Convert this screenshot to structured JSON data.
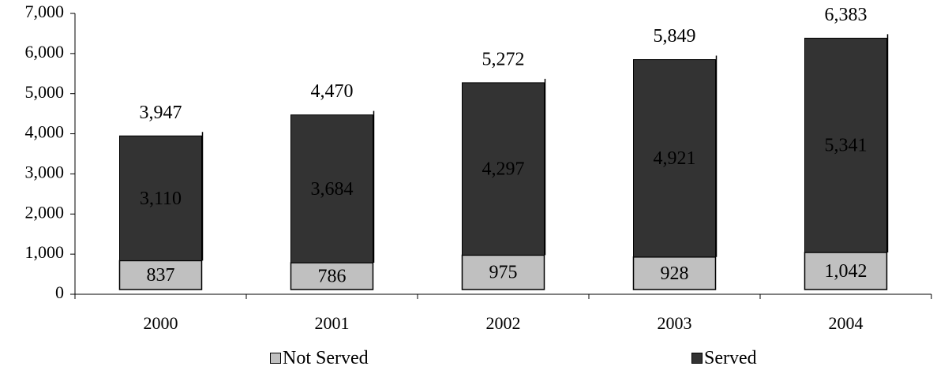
{
  "chart_data": {
    "type": "bar",
    "stacked": true,
    "categories": [
      "2000",
      "2001",
      "2002",
      "2003",
      "2004"
    ],
    "series": [
      {
        "name": "Not Served",
        "color": "#c0c0c0",
        "values": [
          837,
          786,
          975,
          928,
          1042
        ]
      },
      {
        "name": "Served",
        "color": "#333333",
        "values": [
          3110,
          3684,
          4297,
          4921,
          5341
        ]
      }
    ],
    "totals": [
      3947,
      4470,
      5272,
      5849,
      6383
    ],
    "labels": {
      "totals": [
        "3,947",
        "4,470",
        "5,272",
        "5,849",
        "6,383"
      ],
      "not_served": [
        "837",
        "786",
        "975",
        "928",
        "1,042"
      ],
      "served": [
        "3,110",
        "3,684",
        "4,297",
        "4,921",
        "5,341"
      ]
    },
    "ylim": [
      0,
      7000
    ],
    "yticks": [
      0,
      1000,
      2000,
      3000,
      4000,
      5000,
      6000,
      7000
    ],
    "ytick_labels": [
      "0",
      "1,000",
      "2,000",
      "3,000",
      "4,000",
      "5,000",
      "6,000",
      "7,000"
    ],
    "legend_position": "bottom",
    "grid": false
  },
  "legend": {
    "not_served_label": "Not Served",
    "served_label": "Served"
  }
}
